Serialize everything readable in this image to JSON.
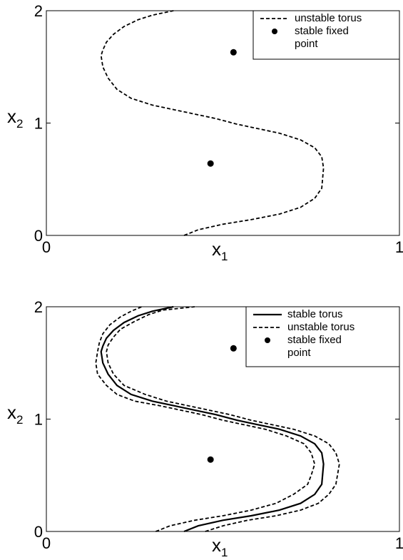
{
  "chart_data": [
    {
      "type": "line",
      "xlabel": "x",
      "xlabel_sub": "1",
      "ylabel": "x",
      "ylabel_sub": "2",
      "xlim": [
        0,
        1
      ],
      "ylim": [
        0,
        2
      ],
      "xticks": [
        "0",
        "1"
      ],
      "yticks": [
        "0",
        "1",
        "2"
      ],
      "legend_position": "top-right",
      "legend": [
        {
          "label": "unstable torus",
          "style": "dashed"
        },
        {
          "label": "stable fixed\npoint",
          "style": "dot"
        }
      ],
      "series": [
        {
          "name": "unstable torus",
          "style": "dashed",
          "x": [
            0.39,
            0.43,
            0.5,
            0.58,
            0.66,
            0.72,
            0.76,
            0.78,
            0.785,
            0.78,
            0.76,
            0.72,
            0.66,
            0.6,
            0.54,
            0.48,
            0.42,
            0.36,
            0.3,
            0.24,
            0.2,
            0.175,
            0.16,
            0.155,
            0.16,
            0.17,
            0.19,
            0.22,
            0.26,
            0.3,
            0.36
          ],
          "y": [
            0.0,
            0.05,
            0.1,
            0.14,
            0.19,
            0.25,
            0.33,
            0.42,
            0.6,
            0.7,
            0.78,
            0.85,
            0.91,
            0.95,
            0.99,
            1.04,
            1.08,
            1.12,
            1.16,
            1.22,
            1.3,
            1.4,
            1.5,
            1.6,
            1.65,
            1.72,
            1.79,
            1.86,
            1.92,
            1.96,
            2.0
          ]
        }
      ],
      "points": {
        "name": "stable fixed point",
        "x": [
          0.465,
          0.53
        ],
        "y": [
          0.64,
          1.63
        ]
      }
    },
    {
      "type": "line",
      "xlabel": "x",
      "xlabel_sub": "1",
      "ylabel": "x",
      "ylabel_sub": "2",
      "xlim": [
        0,
        1
      ],
      "ylim": [
        0,
        2
      ],
      "xticks": [
        "0",
        "1"
      ],
      "yticks": [
        "0",
        "1",
        "2"
      ],
      "legend_position": "top-right",
      "legend": [
        {
          "label": "stable torus",
          "style": "solid"
        },
        {
          "label": "unstable torus",
          "style": "dashed"
        },
        {
          "label": "stable fixed\npoint",
          "style": "dot"
        }
      ],
      "series": [
        {
          "name": "stable torus",
          "style": "solid",
          "x": [
            0.39,
            0.43,
            0.5,
            0.58,
            0.66,
            0.72,
            0.76,
            0.78,
            0.785,
            0.78,
            0.76,
            0.72,
            0.66,
            0.6,
            0.54,
            0.48,
            0.42,
            0.36,
            0.3,
            0.24,
            0.2,
            0.175,
            0.16,
            0.155,
            0.16,
            0.17,
            0.19,
            0.22,
            0.26,
            0.3,
            0.36
          ],
          "y": [
            0.0,
            0.05,
            0.1,
            0.14,
            0.19,
            0.25,
            0.33,
            0.42,
            0.6,
            0.7,
            0.78,
            0.85,
            0.91,
            0.95,
            0.99,
            1.04,
            1.08,
            1.12,
            1.16,
            1.22,
            1.3,
            1.4,
            1.5,
            1.6,
            1.65,
            1.72,
            1.79,
            1.86,
            1.92,
            1.96,
            2.0
          ]
        },
        {
          "name": "unstable torus",
          "style": "dashed",
          "x": [
            0.31,
            0.35,
            0.42,
            0.5,
            0.58,
            0.65,
            0.7,
            0.74,
            0.75,
            0.76,
            0.75,
            0.73,
            0.68,
            0.62,
            0.56,
            0.5,
            0.44,
            0.38,
            0.32,
            0.25,
            0.2,
            0.17,
            0.145,
            0.14,
            0.145,
            0.15,
            0.16,
            0.18,
            0.21,
            0.24,
            0.27
          ],
          "y": [
            0.0,
            0.05,
            0.1,
            0.14,
            0.19,
            0.25,
            0.33,
            0.42,
            0.5,
            0.6,
            0.7,
            0.78,
            0.85,
            0.91,
            0.95,
            0.99,
            1.04,
            1.08,
            1.12,
            1.16,
            1.22,
            1.3,
            1.4,
            1.5,
            1.6,
            1.68,
            1.76,
            1.84,
            1.91,
            1.96,
            2.0
          ]
        },
        {
          "name": "unstable torus",
          "style": "dashed",
          "x": [
            0.45,
            0.5,
            0.57,
            0.65,
            0.72,
            0.77,
            0.8,
            0.82,
            0.83,
            0.82,
            0.8,
            0.76,
            0.7,
            0.64,
            0.58,
            0.52,
            0.46,
            0.4,
            0.34,
            0.28,
            0.22,
            0.19,
            0.175,
            0.17,
            0.175,
            0.19,
            0.21,
            0.25,
            0.29,
            0.33,
            0.42
          ],
          "y": [
            0.0,
            0.05,
            0.1,
            0.14,
            0.19,
            0.25,
            0.33,
            0.42,
            0.6,
            0.7,
            0.78,
            0.85,
            0.91,
            0.95,
            0.99,
            1.04,
            1.08,
            1.12,
            1.16,
            1.22,
            1.3,
            1.4,
            1.5,
            1.6,
            1.66,
            1.73,
            1.8,
            1.87,
            1.93,
            1.97,
            2.0
          ]
        }
      ],
      "points": {
        "name": "stable fixed point",
        "x": [
          0.465,
          0.53
        ],
        "y": [
          0.64,
          1.63
        ]
      }
    }
  ]
}
